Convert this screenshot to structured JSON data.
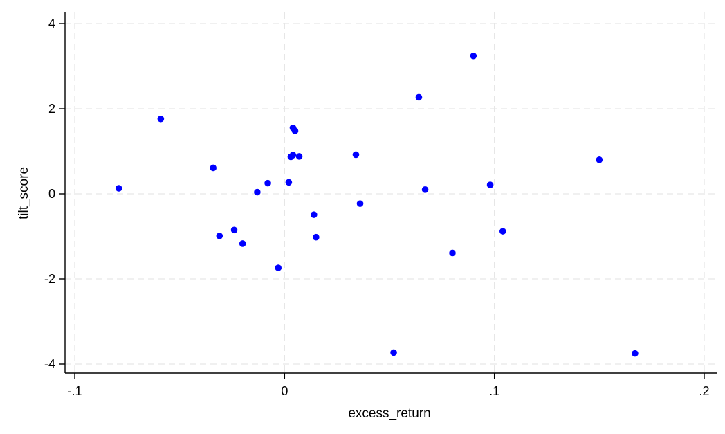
{
  "chart_data": {
    "type": "scatter",
    "title": "",
    "xlabel": "excess_return",
    "ylabel": "tilt_score",
    "xlim": [
      -0.1,
      0.2
    ],
    "ylim": [
      -4,
      4
    ],
    "xticks": [
      -0.1,
      0,
      0.1,
      0.2
    ],
    "xtick_labels": [
      "-.1",
      "0",
      ".1",
      ".2"
    ],
    "yticks": [
      -4,
      -2,
      0,
      2,
      4
    ],
    "ytick_labels": [
      "-4",
      "-2",
      "0",
      "2",
      "4"
    ],
    "grid": true,
    "marker_color": "#0000ff",
    "points": [
      {
        "x": -0.079,
        "y": 0.13
      },
      {
        "x": -0.059,
        "y": 1.76
      },
      {
        "x": -0.034,
        "y": 0.61
      },
      {
        "x": -0.031,
        "y": -0.99
      },
      {
        "x": -0.024,
        "y": -0.85
      },
      {
        "x": -0.02,
        "y": -1.17
      },
      {
        "x": -0.013,
        "y": 0.04
      },
      {
        "x": -0.008,
        "y": 0.25
      },
      {
        "x": -0.003,
        "y": -1.74
      },
      {
        "x": 0.002,
        "y": 0.27
      },
      {
        "x": 0.003,
        "y": 0.87
      },
      {
        "x": 0.004,
        "y": 0.91
      },
      {
        "x": 0.004,
        "y": 1.55
      },
      {
        "x": 0.005,
        "y": 1.48
      },
      {
        "x": 0.007,
        "y": 0.88
      },
      {
        "x": 0.014,
        "y": -0.49
      },
      {
        "x": 0.015,
        "y": -1.02
      },
      {
        "x": 0.034,
        "y": 0.92
      },
      {
        "x": 0.036,
        "y": -0.23
      },
      {
        "x": 0.052,
        "y": -3.73
      },
      {
        "x": 0.064,
        "y": 2.27
      },
      {
        "x": 0.067,
        "y": 0.1
      },
      {
        "x": 0.08,
        "y": -1.39
      },
      {
        "x": 0.09,
        "y": 3.24
      },
      {
        "x": 0.098,
        "y": 0.21
      },
      {
        "x": 0.104,
        "y": -0.88
      },
      {
        "x": 0.15,
        "y": 0.8
      },
      {
        "x": 0.167,
        "y": -3.75
      }
    ]
  }
}
